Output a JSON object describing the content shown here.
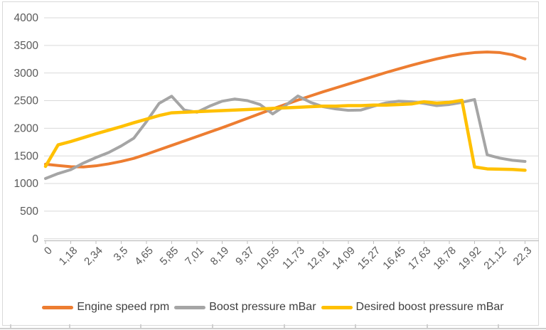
{
  "chart_data": {
    "type": "line",
    "title": "",
    "categories": [
      "0",
      "1,18",
      "2,34",
      "3,5",
      "4,65",
      "5,85",
      "7,01",
      "8,19",
      "9,37",
      "10,55",
      "11,73",
      "12,91",
      "14,09",
      "15,27",
      "16,45",
      "17,63",
      "18,78",
      "19,92",
      "21,12",
      "22,3"
    ],
    "label_every_n_points": 2,
    "samples_total": 39,
    "y_axis": {
      "min": 0,
      "max": 4000,
      "step": 500
    },
    "grid": true,
    "legend_position": "bottom",
    "series": [
      {
        "name": "Engine speed rpm",
        "color": "#ED7D31",
        "values": [
          1350,
          1325,
          1305,
          1300,
          1320,
          1355,
          1400,
          1455,
          1530,
          1610,
          1690,
          1770,
          1850,
          1930,
          2010,
          2095,
          2180,
          2265,
          2350,
          2430,
          2510,
          2585,
          2660,
          2730,
          2800,
          2870,
          2940,
          3010,
          3075,
          3140,
          3200,
          3255,
          3305,
          3345,
          3370,
          3380,
          3370,
          3330,
          3255
        ]
      },
      {
        "name": "Boost pressure mBar",
        "color": "#A5A5A5",
        "values": [
          1090,
          1180,
          1250,
          1370,
          1470,
          1560,
          1680,
          1820,
          2120,
          2450,
          2580,
          2330,
          2290,
          2400,
          2490,
          2530,
          2500,
          2430,
          2260,
          2410,
          2585,
          2470,
          2390,
          2350,
          2325,
          2330,
          2400,
          2460,
          2490,
          2480,
          2450,
          2410,
          2430,
          2470,
          2520,
          1520,
          1460,
          1420,
          1400
        ]
      },
      {
        "name": "Desired boost pressure mBar",
        "color": "#FFC000",
        "values": [
          1310,
          1700,
          1760,
          1830,
          1900,
          1965,
          2030,
          2100,
          2165,
          2230,
          2280,
          2290,
          2300,
          2310,
          2320,
          2330,
          2340,
          2350,
          2360,
          2370,
          2380,
          2390,
          2400,
          2400,
          2410,
          2410,
          2420,
          2420,
          2430,
          2440,
          2480,
          2455,
          2470,
          2505,
          1300,
          1265,
          1260,
          1255,
          1240
        ]
      }
    ]
  },
  "colors": {
    "gridline": "#D9D9D9",
    "axis_line": "#BFBFBF",
    "tick_label": "#595959",
    "legend_text": "#3F3F3F",
    "frame_border": "#D9D9D9",
    "sheet_line": "#CFCFCF"
  }
}
